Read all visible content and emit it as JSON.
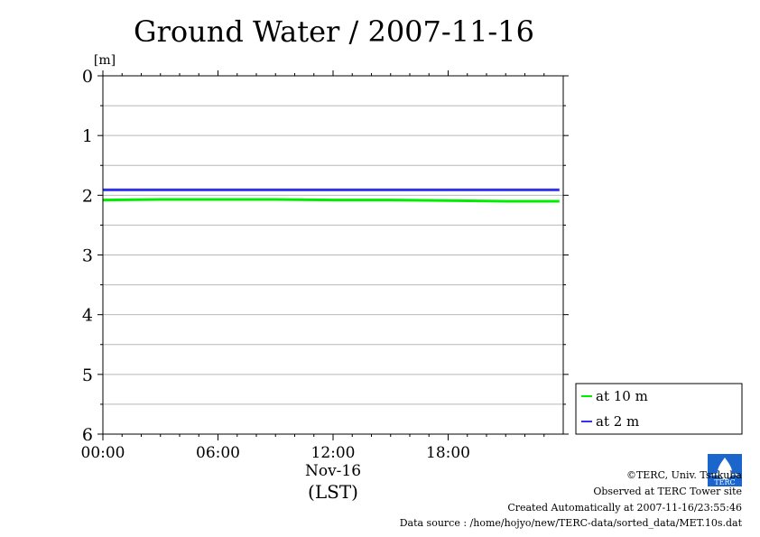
{
  "chart_data": {
    "type": "line",
    "title": "Ground Water / 2007-11-16",
    "ylabel": "[m]",
    "ylim": [
      0,
      6
    ],
    "y_inverted": true,
    "yticks": [
      "0",
      "1",
      "2",
      "3",
      "4",
      "5",
      "6"
    ],
    "xlim": [
      0,
      24
    ],
    "xticks": [
      {
        "value": 0,
        "label": "00:00"
      },
      {
        "value": 6,
        "label": "06:00"
      },
      {
        "value": 12,
        "label": "12:00"
      },
      {
        "value": 18,
        "label": "18:00"
      }
    ],
    "x_date_label": "Nov-16",
    "x_unit_label": "(LST)",
    "grid": true,
    "legend_position": "bottom-right-outside",
    "series": [
      {
        "name": "at 10 m",
        "color": "#00ee00",
        "x": [
          0,
          3,
          6,
          9,
          12,
          15,
          18,
          21,
          23.8
        ],
        "values": [
          2.08,
          2.07,
          2.07,
          2.07,
          2.08,
          2.08,
          2.09,
          2.1,
          2.1
        ]
      },
      {
        "name": "at 2 m",
        "color": "#3333ee",
        "x": [
          0,
          3,
          6,
          9,
          12,
          15,
          18,
          21,
          23.8
        ],
        "values": [
          1.91,
          1.91,
          1.91,
          1.91,
          1.91,
          1.91,
          1.91,
          1.91,
          1.91
        ]
      }
    ]
  },
  "footer": {
    "copyright": "©TERC, Univ. Tsukuba",
    "observed": "Observed at TERC Tower site",
    "created": "Created Automatically at 2007-11-16/23:55:46",
    "source": "Data source : /home/hojyo/new/TERC-data/sorted_data/MET.10s.dat",
    "logo_text": "TERC"
  }
}
